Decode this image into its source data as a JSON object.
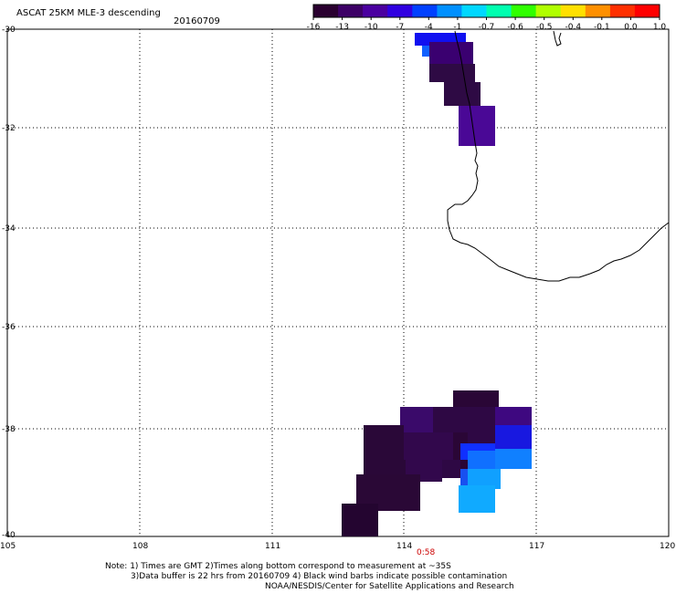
{
  "header": {
    "title": "ASCAT 25KM MLE-3 descending",
    "date": "20160709"
  },
  "colorbar": {
    "labels": [
      "-16",
      "-13",
      "-10",
      "-7",
      "-4",
      "-1",
      "-0.7",
      "-0.6",
      "-0.5",
      "-0.4",
      "-0.1",
      "0.0",
      "1.0"
    ],
    "colors": [
      "#2a0030",
      "#3d0066",
      "#4b00a0",
      "#3000e0",
      "#0040ff",
      "#0090ff",
      "#00d8ff",
      "#00ffb0",
      "#30ff00",
      "#b0ff00",
      "#ffe000",
      "#ff9000",
      "#ff3000",
      "#ff0000"
    ]
  },
  "axes": {
    "lat_labels": [
      "-30",
      "-32",
      "-34",
      "-36",
      "-38",
      "-40"
    ],
    "lon_labels": [
      "105",
      "108",
      "111",
      "114",
      "117",
      "120"
    ]
  },
  "time_label": "0:58",
  "notes": {
    "line1": "Note: 1) Times are GMT 2)Times along bottom correspond to measurement at ~35S",
    "line2": "3)Data buffer is 22 hrs from 20160709 4) Black wind barbs indicate possible contamination",
    "line3": "NOAA/NESDIS/Center for Satellite Applications and Research"
  }
}
